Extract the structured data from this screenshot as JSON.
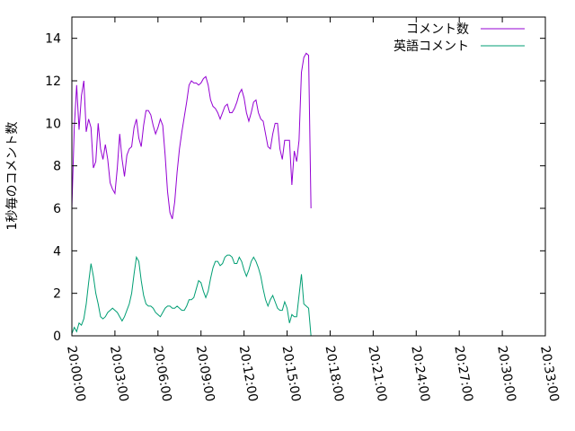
{
  "chart_data": {
    "type": "line",
    "title": "",
    "xlabel": "",
    "ylabel": "1秒毎のコメント数",
    "xlim": [
      "20:00:00",
      "20:33:00"
    ],
    "ylim": [
      0,
      15
    ],
    "xticks": [
      "20:00:00",
      "20:03:00",
      "20:06:00",
      "20:09:00",
      "20:12:00",
      "20:15:00",
      "20:18:00",
      "20:21:00",
      "20:24:00",
      "20:27:00",
      "20:30:00",
      "20:33:00"
    ],
    "yticks": [
      "0",
      "2",
      "4",
      "6",
      "8",
      "10",
      "12",
      "14"
    ],
    "grid": false,
    "legend_position": "top-right",
    "series": [
      {
        "name": "コメント数",
        "color": "#9400d3",
        "points": [
          [
            "20:00:00",
            6.0
          ],
          [
            "20:00:10",
            9.8
          ],
          [
            "20:00:20",
            11.8
          ],
          [
            "20:00:30",
            9.7
          ],
          [
            "20:00:40",
            11.3
          ],
          [
            "20:00:50",
            12.0
          ],
          [
            "20:01:00",
            9.6
          ],
          [
            "20:01:10",
            10.2
          ],
          [
            "20:01:20",
            9.8
          ],
          [
            "20:01:30",
            7.9
          ],
          [
            "20:01:40",
            8.2
          ],
          [
            "20:01:50",
            10.0
          ],
          [
            "20:02:00",
            8.8
          ],
          [
            "20:02:10",
            8.3
          ],
          [
            "20:02:20",
            9.0
          ],
          [
            "20:02:30",
            8.3
          ],
          [
            "20:02:40",
            7.2
          ],
          [
            "20:02:50",
            6.9
          ],
          [
            "20:03:00",
            6.7
          ],
          [
            "20:03:10",
            7.9
          ],
          [
            "20:03:20",
            9.5
          ],
          [
            "20:03:30",
            8.3
          ],
          [
            "20:03:40",
            7.5
          ],
          [
            "20:03:50",
            8.5
          ],
          [
            "20:04:00",
            8.8
          ],
          [
            "20:04:10",
            8.9
          ],
          [
            "20:04:20",
            9.8
          ],
          [
            "20:04:30",
            10.2
          ],
          [
            "20:04:40",
            9.3
          ],
          [
            "20:04:50",
            8.9
          ],
          [
            "20:05:00",
            9.9
          ],
          [
            "20:05:10",
            10.6
          ],
          [
            "20:05:20",
            10.6
          ],
          [
            "20:05:30",
            10.4
          ],
          [
            "20:05:40",
            9.9
          ],
          [
            "20:05:50",
            9.5
          ],
          [
            "20:06:00",
            9.8
          ],
          [
            "20:06:10",
            10.2
          ],
          [
            "20:06:20",
            9.9
          ],
          [
            "20:06:30",
            8.5
          ],
          [
            "20:06:40",
            6.8
          ],
          [
            "20:06:50",
            5.8
          ],
          [
            "20:07:00",
            5.5
          ],
          [
            "20:07:10",
            6.3
          ],
          [
            "20:07:20",
            7.7
          ],
          [
            "20:07:30",
            8.8
          ],
          [
            "20:07:40",
            9.6
          ],
          [
            "20:07:50",
            10.3
          ],
          [
            "20:08:00",
            11.0
          ],
          [
            "20:08:10",
            11.8
          ],
          [
            "20:08:20",
            12.0
          ],
          [
            "20:08:30",
            11.9
          ],
          [
            "20:08:40",
            11.9
          ],
          [
            "20:08:50",
            11.8
          ],
          [
            "20:09:00",
            11.9
          ],
          [
            "20:09:10",
            12.1
          ],
          [
            "20:09:20",
            12.2
          ],
          [
            "20:09:30",
            11.8
          ],
          [
            "20:09:40",
            11.1
          ],
          [
            "20:09:50",
            10.8
          ],
          [
            "20:10:00",
            10.7
          ],
          [
            "20:10:10",
            10.5
          ],
          [
            "20:10:20",
            10.2
          ],
          [
            "20:10:30",
            10.5
          ],
          [
            "20:10:40",
            10.8
          ],
          [
            "20:10:50",
            10.9
          ],
          [
            "20:11:00",
            10.5
          ],
          [
            "20:11:10",
            10.5
          ],
          [
            "20:11:20",
            10.7
          ],
          [
            "20:11:30",
            11.0
          ],
          [
            "20:11:40",
            11.4
          ],
          [
            "20:11:50",
            11.6
          ],
          [
            "20:12:00",
            11.2
          ],
          [
            "20:12:10",
            10.5
          ],
          [
            "20:12:20",
            10.1
          ],
          [
            "20:12:30",
            10.5
          ],
          [
            "20:12:40",
            11.0
          ],
          [
            "20:12:50",
            11.1
          ],
          [
            "20:13:00",
            10.5
          ],
          [
            "20:13:10",
            10.2
          ],
          [
            "20:13:20",
            10.1
          ],
          [
            "20:13:30",
            9.5
          ],
          [
            "20:13:40",
            8.9
          ],
          [
            "20:13:50",
            8.8
          ],
          [
            "20:14:00",
            9.5
          ],
          [
            "20:14:10",
            10.0
          ],
          [
            "20:14:20",
            10.0
          ],
          [
            "20:14:30",
            8.8
          ],
          [
            "20:14:40",
            8.3
          ],
          [
            "20:14:50",
            9.2
          ],
          [
            "20:15:00",
            9.2
          ],
          [
            "20:15:10",
            9.2
          ],
          [
            "20:15:20",
            7.1
          ],
          [
            "20:15:30",
            8.7
          ],
          [
            "20:15:40",
            8.2
          ],
          [
            "20:15:50",
            9.2
          ],
          [
            "20:16:00",
            12.4
          ],
          [
            "20:16:10",
            13.1
          ],
          [
            "20:16:20",
            13.3
          ],
          [
            "20:16:30",
            13.2
          ],
          [
            "20:16:40",
            6.0
          ]
        ]
      },
      {
        "name": "英語コメント",
        "color": "#009e73",
        "points": [
          [
            "20:00:00",
            0.1
          ],
          [
            "20:00:10",
            0.4
          ],
          [
            "20:00:20",
            0.2
          ],
          [
            "20:00:30",
            0.6
          ],
          [
            "20:00:40",
            0.5
          ],
          [
            "20:00:50",
            0.8
          ],
          [
            "20:01:00",
            1.5
          ],
          [
            "20:01:10",
            2.5
          ],
          [
            "20:01:20",
            3.4
          ],
          [
            "20:01:30",
            2.8
          ],
          [
            "20:01:40",
            2.0
          ],
          [
            "20:01:50",
            1.5
          ],
          [
            "20:02:00",
            0.9
          ],
          [
            "20:02:10",
            0.8
          ],
          [
            "20:02:20",
            0.9
          ],
          [
            "20:02:30",
            1.1
          ],
          [
            "20:02:40",
            1.2
          ],
          [
            "20:02:50",
            1.3
          ],
          [
            "20:03:00",
            1.2
          ],
          [
            "20:03:10",
            1.1
          ],
          [
            "20:03:20",
            0.9
          ],
          [
            "20:03:30",
            0.7
          ],
          [
            "20:03:40",
            0.9
          ],
          [
            "20:03:50",
            1.2
          ],
          [
            "20:04:00",
            1.5
          ],
          [
            "20:04:10",
            2.0
          ],
          [
            "20:04:20",
            2.9
          ],
          [
            "20:04:30",
            3.7
          ],
          [
            "20:04:40",
            3.5
          ],
          [
            "20:04:50",
            2.6
          ],
          [
            "20:05:00",
            1.9
          ],
          [
            "20:05:10",
            1.5
          ],
          [
            "20:05:20",
            1.4
          ],
          [
            "20:05:30",
            1.4
          ],
          [
            "20:05:40",
            1.3
          ],
          [
            "20:05:50",
            1.1
          ],
          [
            "20:06:00",
            1.0
          ],
          [
            "20:06:10",
            0.9
          ],
          [
            "20:06:20",
            1.1
          ],
          [
            "20:06:30",
            1.3
          ],
          [
            "20:06:40",
            1.4
          ],
          [
            "20:06:50",
            1.4
          ],
          [
            "20:07:00",
            1.3
          ],
          [
            "20:07:10",
            1.3
          ],
          [
            "20:07:20",
            1.4
          ],
          [
            "20:07:30",
            1.3
          ],
          [
            "20:07:40",
            1.2
          ],
          [
            "20:07:50",
            1.2
          ],
          [
            "20:08:00",
            1.4
          ],
          [
            "20:08:10",
            1.7
          ],
          [
            "20:08:20",
            1.7
          ],
          [
            "20:08:30",
            1.8
          ],
          [
            "20:08:40",
            2.2
          ],
          [
            "20:08:50",
            2.6
          ],
          [
            "20:09:00",
            2.5
          ],
          [
            "20:09:10",
            2.1
          ],
          [
            "20:09:20",
            1.8
          ],
          [
            "20:09:30",
            2.1
          ],
          [
            "20:09:40",
            2.7
          ],
          [
            "20:09:50",
            3.2
          ],
          [
            "20:10:00",
            3.5
          ],
          [
            "20:10:10",
            3.5
          ],
          [
            "20:10:20",
            3.3
          ],
          [
            "20:10:30",
            3.4
          ],
          [
            "20:10:40",
            3.7
          ],
          [
            "20:10:50",
            3.8
          ],
          [
            "20:11:00",
            3.8
          ],
          [
            "20:11:10",
            3.7
          ],
          [
            "20:11:20",
            3.4
          ],
          [
            "20:11:30",
            3.4
          ],
          [
            "20:11:40",
            3.7
          ],
          [
            "20:11:50",
            3.5
          ],
          [
            "20:12:00",
            3.1
          ],
          [
            "20:12:10",
            2.8
          ],
          [
            "20:12:20",
            3.1
          ],
          [
            "20:12:30",
            3.5
          ],
          [
            "20:12:40",
            3.7
          ],
          [
            "20:12:50",
            3.5
          ],
          [
            "20:13:00",
            3.2
          ],
          [
            "20:13:10",
            2.8
          ],
          [
            "20:13:20",
            2.2
          ],
          [
            "20:13:30",
            1.7
          ],
          [
            "20:13:40",
            1.4
          ],
          [
            "20:13:50",
            1.7
          ],
          [
            "20:14:00",
            1.9
          ],
          [
            "20:14:10",
            1.6
          ],
          [
            "20:14:20",
            1.3
          ],
          [
            "20:14:30",
            1.2
          ],
          [
            "20:14:40",
            1.2
          ],
          [
            "20:14:50",
            1.6
          ],
          [
            "20:15:00",
            1.3
          ],
          [
            "20:15:10",
            0.6
          ],
          [
            "20:15:20",
            1.0
          ],
          [
            "20:15:30",
            0.9
          ],
          [
            "20:15:40",
            0.9
          ],
          [
            "20:15:50",
            1.9
          ],
          [
            "20:16:00",
            2.9
          ],
          [
            "20:16:10",
            1.5
          ],
          [
            "20:16:20",
            1.4
          ],
          [
            "20:16:30",
            1.3
          ],
          [
            "20:16:40",
            0.0
          ]
        ]
      }
    ]
  }
}
